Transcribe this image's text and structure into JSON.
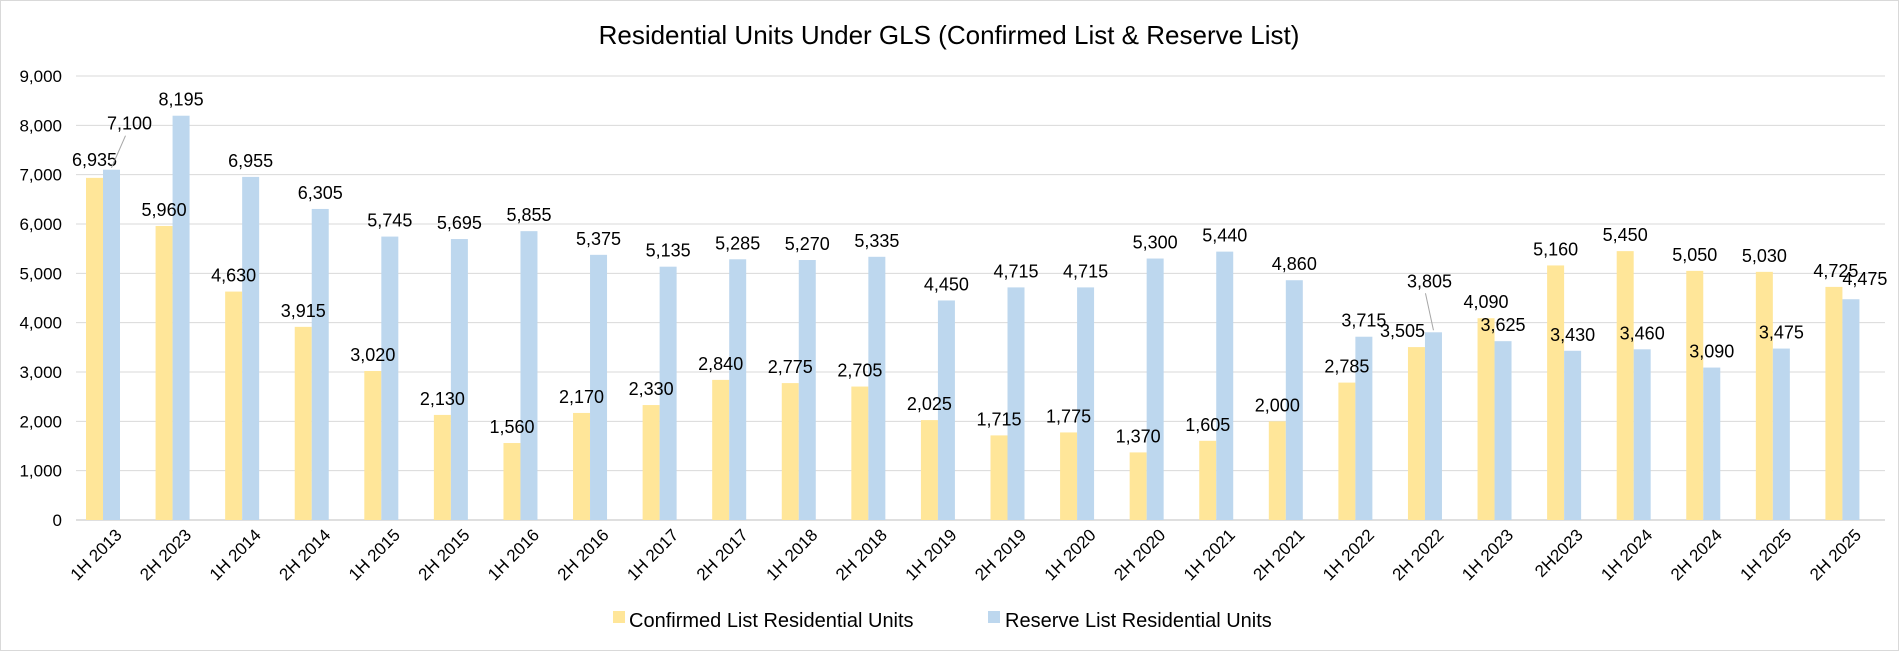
{
  "chart_data": {
    "type": "bar",
    "title": "Residential Units Under GLS (Confirmed List & Reserve List)",
    "xlabel": "",
    "ylabel": "",
    "ylim": [
      0,
      9000
    ],
    "yticks": [
      "0",
      "1,000",
      "2,000",
      "3,000",
      "4,000",
      "5,000",
      "6,000",
      "7,000",
      "8,000",
      "9,000"
    ],
    "grid": true,
    "legend_position": "bottom",
    "categories": [
      "1H 2013",
      "2H 2023",
      "1H 2014",
      "2H 2014",
      "1H 2015",
      "2H 2015",
      "1H 2016",
      "2H 2016",
      "1H 2017",
      "2H 2017",
      "1H 2018",
      "2H 2018",
      "1H 2019",
      "2H 2019",
      "1H 2020",
      "2H 2020",
      "1H 2021",
      "2H 2021",
      "1H 2022",
      "2H 2022",
      "1H 2023",
      "2H2023",
      "1H 2024",
      "2H 2024",
      "1H 2025",
      "2H 2025"
    ],
    "series": [
      {
        "name": "Confirmed List Residential Units",
        "color": "#FFE699",
        "values": [
          6935,
          5960,
          4630,
          3915,
          3020,
          2130,
          1560,
          2170,
          2330,
          2840,
          2775,
          2705,
          2025,
          1715,
          1775,
          1370,
          1605,
          2000,
          2785,
          3505,
          4090,
          5160,
          5450,
          5050,
          5030,
          4725
        ],
        "labels": [
          "6,935",
          "5,960",
          "4,630",
          "3,915",
          "3,020",
          "2,130",
          "1,560",
          "2,170",
          "2,330",
          "2,840",
          "2,775",
          "2,705",
          "2,025",
          "1,715",
          "1,775",
          "1,370",
          "1,605",
          "2,000",
          "2,785",
          "3,505",
          "4,090",
          "5,160",
          "5,450",
          "5,050",
          "5,030",
          "4,725"
        ]
      },
      {
        "name": "Reserve List Residential Units",
        "color": "#BDD7EE",
        "values": [
          7100,
          8195,
          6955,
          6305,
          5745,
          5695,
          5855,
          5375,
          5135,
          5285,
          5270,
          5335,
          4450,
          4715,
          4715,
          5300,
          5440,
          4860,
          3715,
          3805,
          3625,
          3430,
          3460,
          3090,
          3475,
          4475
        ],
        "labels": [
          "7,100",
          "8,195",
          "6,955",
          "6,305",
          "5,745",
          "5,695",
          "5,855",
          "5,375",
          "5,135",
          "5,285",
          "5,270",
          "5,335",
          "4,450",
          "4,715",
          "4,715",
          "5,300",
          "5,440",
          "4,860",
          "3,715",
          "3,805",
          "3,625",
          "3,430",
          "3,460",
          "3,090",
          "3,475",
          "4,475"
        ]
      }
    ]
  },
  "colors": {
    "gridline": "#d9d9d9",
    "axis": "#bfbfbf",
    "leader_line": "#a6a6a6"
  }
}
